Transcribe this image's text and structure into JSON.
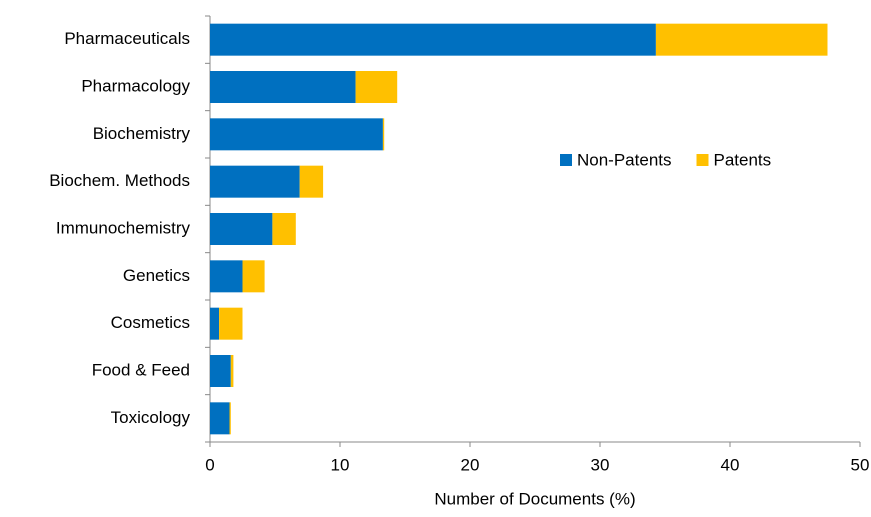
{
  "chart_data": {
    "type": "stacked-barh",
    "xlabel": "Number of Documents (%)",
    "categories": [
      "Pharmaceuticals",
      "Pharmacology",
      "Biochemistry",
      "Biochem. Methods",
      "Immunochemistry",
      "Genetics",
      "Cosmetics",
      "Food & Feed",
      "Toxicology"
    ],
    "series": [
      {
        "name": "Non-Patents",
        "color": "#0070c0",
        "values": [
          34.3,
          11.2,
          13.3,
          6.9,
          4.8,
          2.5,
          0.7,
          1.6,
          1.5
        ]
      },
      {
        "name": "Patents",
        "color": "#ffc000",
        "values": [
          13.2,
          3.2,
          0.1,
          1.8,
          1.8,
          1.7,
          1.8,
          0.2,
          0.1
        ]
      }
    ],
    "xlim": [
      0,
      50
    ],
    "xticks": [
      0,
      10,
      20,
      30,
      40,
      50
    ],
    "legend": "upper right"
  }
}
